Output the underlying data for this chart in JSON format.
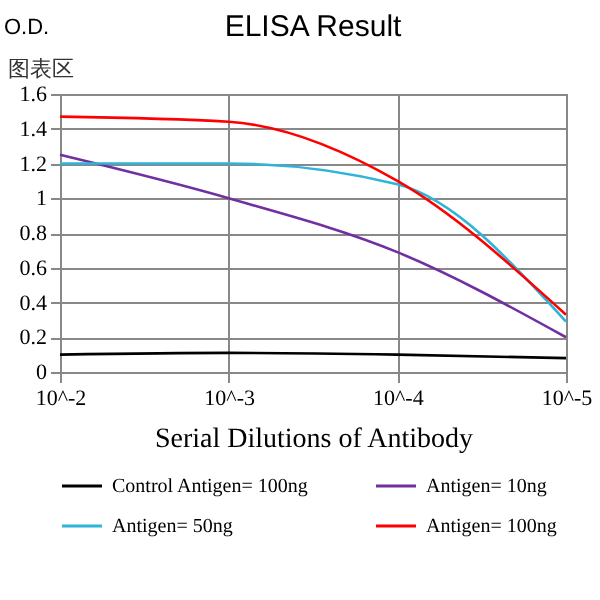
{
  "chart_data": {
    "type": "line",
    "title": "ELISA Result",
    "xlabel": "Serial Dilutions of Antibody",
    "ylabel": "O.D.",
    "annotations": [
      "图表区"
    ],
    "categories": [
      "10^-2",
      "10^-3",
      "10^-4",
      "10^-5"
    ],
    "series": [
      {
        "name": "Control Antigen= 100ng",
        "color": "#000000",
        "values": [
          0.1,
          0.11,
          0.1,
          0.08
        ]
      },
      {
        "name": "Antigen= 10ng",
        "color": "#7030a0",
        "values": [
          1.25,
          1.0,
          0.69,
          0.2
        ]
      },
      {
        "name": "Antigen= 50ng",
        "color": "#2eb4d8",
        "values": [
          1.2,
          1.2,
          1.08,
          0.29
        ]
      },
      {
        "name": "Antigen= 100ng",
        "color": "#ff0000",
        "values": [
          1.47,
          1.44,
          1.1,
          0.33
        ]
      }
    ],
    "ylim": [
      0,
      1.6
    ],
    "yticks": [
      0,
      0.2,
      0.4,
      0.6,
      0.8,
      1,
      1.2,
      1.4,
      1.6
    ],
    "grid": true,
    "legend": "bottom",
    "marker": "none",
    "line_style": "solid"
  }
}
